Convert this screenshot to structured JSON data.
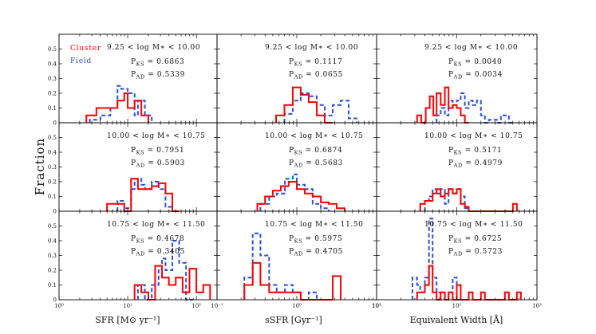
{
  "chart_data": {
    "type": "histogram-grid",
    "ylabel": "Fraction",
    "ylim": [
      0,
      0.6
    ],
    "yticks": [
      "0",
      "0.1",
      "0.2",
      "0.3",
      "0.4",
      "0.5"
    ],
    "legend": [
      {
        "name": "Cluster",
        "color": "#ff0000",
        "style": "solid"
      },
      {
        "name": "Field",
        "color": "#2b4fd6",
        "style": "dashed"
      }
    ],
    "columns": [
      {
        "xlabel": "SFR [M⊙ yr⁻¹]",
        "xscale": "log",
        "xlim": [
          1,
          200
        ],
        "xticks": [
          {
            "v": 1,
            "label": "10⁰"
          },
          {
            "v": 10,
            "label": "10¹"
          },
          {
            "v": 100,
            "label": "10²"
          }
        ]
      },
      {
        "xlabel": "sSFR [Gyr⁻¹]",
        "xscale": "log",
        "xlim": [
          0.1,
          10
        ],
        "xticks": [
          {
            "v": 0.1,
            "label": "10⁻¹"
          },
          {
            "v": 1,
            "label": "10⁰"
          },
          {
            "v": 10,
            "label": "10¹"
          }
        ]
      },
      {
        "xlabel": "Equivalent Width [Å]",
        "xscale": "log",
        "xlim": [
          10,
          1000
        ],
        "xticks": [
          {
            "v": 10,
            "label": "10¹"
          },
          {
            "v": 100,
            "label": "10²"
          },
          {
            "v": 1000,
            "label": "10³"
          }
        ]
      }
    ],
    "rows": [
      {
        "mass_label": "9.25 < log M∗ < 10.00",
        "panels": [
          {
            "pks": "P_KS = 0.6863",
            "pad": "P_AD = 0.5339",
            "cluster": {
              "edges": [
                2.5,
                3.5,
                5,
                7.1,
                8.9,
                10,
                12.6,
                15.8,
                20
              ],
              "values": [
                0.05,
                0.1,
                0.1,
                0.15,
                0.2,
                0.1,
                0.15,
                0.05
              ]
            },
            "field": {
              "edges": [
                2.8,
                4.0,
                5.6,
                7.1,
                8.0,
                10,
                12.6,
                14.1,
                17.8,
                22.4
              ],
              "values": [
                0.02,
                0.05,
                0.1,
                0.25,
                0.23,
                0.2,
                0.05,
                0.15,
                0.05
              ]
            }
          },
          {
            "pks": "P_KS = 0.1117",
            "pad": "P_AD = 0.0655",
            "cluster": {
              "edges": [
                0.55,
                0.7,
                0.89,
                1.12,
                1.41,
                1.78,
                2.24,
                2.82
              ],
              "values": [
                0.05,
                0.12,
                0.24,
                0.19,
                0.14,
                0.05,
                0.0
              ]
            },
            "field": {
              "edges": [
                0.7,
                0.89,
                1.12,
                1.41,
                1.78,
                2.24,
                2.82,
                3.55,
                4.47,
                5.62
              ],
              "values": [
                0.06,
                0.15,
                0.2,
                0.18,
                0.12,
                0.05,
                0.12,
                0.15,
                0.03
              ]
            }
          },
          {
            "pks": "P_KS = 0.0040",
            "pad": "P_AD = 0.0034",
            "cluster": {
              "edges": [
                32,
                36,
                41,
                46,
                51,
                56,
                63,
                71,
                79,
                89,
                100,
                112,
                126,
                141
              ],
              "values": [
                0.05,
                0.0,
                0.1,
                0.18,
                0.05,
                0.2,
                0.12,
                0.24,
                0.1,
                0.12,
                0.1,
                0.05,
                0.0
              ]
            },
            "field": {
              "edges": [
                56,
                63,
                71,
                79,
                89,
                100,
                112,
                126,
                141,
                158,
                178,
                200,
                224,
                251,
                316,
                355,
                447,
                501
              ],
              "values": [
                0.05,
                0.1,
                0.05,
                0.15,
                0.1,
                0.15,
                0.2,
                0.1,
                0.15,
                0.12,
                0.15,
                0.05,
                0.0,
                0.02,
                0.0,
                0.05,
                0.0
              ]
            }
          }
        ]
      },
      {
        "mass_label": "10.00 < log M∗ < 10.75",
        "panels": [
          {
            "pks": "P_KS = 0.7951",
            "pad": "P_AD = 0.5903",
            "cluster": {
              "edges": [
                5,
                8.9,
                11.2,
                14.1,
                17.8,
                22.4,
                28.2,
                35.5,
                44.7,
                56.2
              ],
              "values": [
                0.05,
                0.0,
                0.22,
                0.15,
                0.15,
                0.17,
                0.19,
                0.12,
                0.0
              ]
            },
            "field": {
              "edges": [
                7.1,
                8.9,
                11.2,
                12.6,
                15.8,
                17.8,
                22.4,
                28.2,
                35.5,
                44.7
              ],
              "values": [
                0.07,
                0.02,
                0.15,
                0.22,
                0.18,
                0.15,
                0.2,
                0.15,
                0.03
              ]
            }
          },
          {
            "pks": "P_KS = 0.6874",
            "pad": "P_AD = 0.5683",
            "cluster": {
              "edges": [
                0.32,
                0.4,
                0.5,
                0.63,
                0.79,
                1.0,
                1.26,
                1.58,
                2.0,
                2.51,
                3.16,
                3.98
              ],
              "values": [
                0.05,
                0.1,
                0.14,
                0.17,
                0.2,
                0.15,
                0.12,
                0.1,
                0.06,
                0.05,
                0.02
              ]
            },
            "field": {
              "edges": [
                0.35,
                0.45,
                0.56,
                0.71,
                0.89,
                1.0,
                1.26,
                1.58,
                2.0,
                2.51
              ],
              "values": [
                0.05,
                0.1,
                0.12,
                0.22,
                0.25,
                0.18,
                0.15,
                0.05,
                0.02
              ]
            }
          },
          {
            "pks": "P_KS = 0.5171",
            "pad": "P_AD = 0.4979",
            "cluster": {
              "edges": [
                35,
                40,
                50,
                56,
                63,
                71,
                79,
                89,
                100,
                112,
                126,
                141,
                158,
                501,
                562
              ],
              "values": [
                0.05,
                0.07,
                0.12,
                0.15,
                0.1,
                0.12,
                0.15,
                0.12,
                0.15,
                0.05,
                0.03,
                0.0,
                0.0,
                0.05
              ]
            },
            "field": {
              "edges": [
                40,
                45,
                50,
                56,
                63,
                71,
                79,
                89,
                100,
                112,
                126,
                141
              ],
              "values": [
                0.07,
                0.1,
                0.15,
                0.12,
                0.15,
                0.05,
                0.15,
                0.12,
                0.15,
                0.1,
                0.02
              ]
            }
          }
        ]
      },
      {
        "mass_label": "10.75 < log M∗ < 11.50",
        "panels": [
          {
            "pks": "P_KS = 0.4678",
            "pad": "P_AD = 0.3405",
            "cluster": {
              "edges": [
                12.6,
                15.8,
                20,
                25.1,
                31.6,
                39.8,
                50.1,
                63.1,
                79.4,
                100,
                125.9,
                158.5
              ],
              "values": [
                0.1,
                0.05,
                0.0,
                0.23,
                0.15,
                0.1,
                0.15,
                0.05,
                0.21,
                0.05,
                0.1
              ]
            },
            "field": {
              "edges": [
                14.1,
                17.8,
                22.4,
                28.2,
                31.6,
                35.5,
                44.7,
                56.2,
                70.8,
                89.1
              ],
              "values": [
                0.1,
                0.0,
                0.1,
                0.23,
                0.28,
                0.2,
                0.4,
                0.25,
                0.0
              ]
            }
          },
          {
            "pks": "P_KS = 0.5975",
            "pad": "P_AD = 0.4705",
            "cluster": {
              "edges": [
                0.22,
                0.28,
                0.35,
                0.45,
                0.56,
                0.71,
                0.89,
                1.12,
                1.41,
                1.78,
                2.24,
                2.82,
                3.55
              ],
              "values": [
                0.1,
                0.25,
                0.1,
                0.05,
                0.05,
                0.05,
                0.05,
                0.0,
                0.0,
                0.0,
                0.0,
                0.16
              ]
            },
            "field": {
              "edges": [
                0.22,
                0.28,
                0.35,
                0.45,
                0.56,
                0.71,
                0.89,
                1.12,
                1.41,
                1.78
              ],
              "values": [
                0.15,
                0.45,
                0.3,
                0.1,
                0.05,
                0.1,
                0.05,
                0.0,
                0.05
              ]
            }
          },
          {
            "pks": "P_KS = 0.6725",
            "pad": "P_AD = 0.5723",
            "cluster": {
              "edges": [
                32,
                35,
                40,
                45,
                50,
                56,
                63,
                71,
                79,
                89,
                100,
                112,
                126,
                141,
                158,
                178,
                200,
                224,
                398,
                447,
                562,
                631
              ],
              "values": [
                0.05,
                0.05,
                0.1,
                0.23,
                0.05,
                0.0,
                0.05,
                0.0,
                0.05,
                0.0,
                0.1,
                0.0,
                0.0,
                0.05,
                0.0,
                0.0,
                0.05,
                0.0,
                0.05,
                0.0,
                0.05
              ]
            },
            "field": {
              "edges": [
                28,
                32,
                35,
                40,
                45,
                50,
                56,
                63,
                79,
                89,
                100,
                112
              ],
              "values": [
                0.15,
                0.1,
                0.05,
                0.15,
                0.55,
                0.15,
                0.05,
                0.0,
                0.05,
                0.15,
                0.0
              ]
            }
          }
        ]
      }
    ]
  }
}
